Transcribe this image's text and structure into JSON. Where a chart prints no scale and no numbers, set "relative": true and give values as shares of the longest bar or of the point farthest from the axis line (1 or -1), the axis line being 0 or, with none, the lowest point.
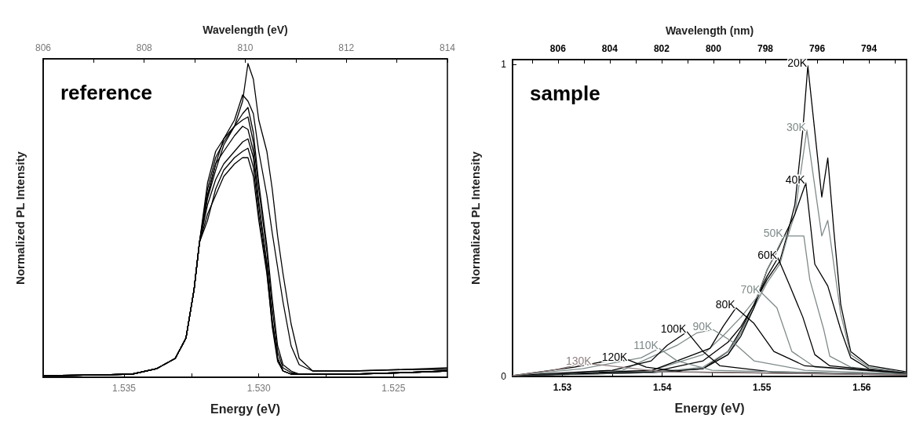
{
  "chart_data": [
    {
      "type": "line",
      "xlabel": "Energy (eV)",
      "x2label": "Wavelength (eV)",
      "ylabel": "Normalized PL Intensity",
      "annotations": [
        "reference"
      ],
      "relative": true,
      "tick_labels": "x",
      "marker": "none",
      "xlim": [
        1.538,
        1.523
      ],
      "xticks": [
        1.535,
        {
          "value": 1.5325,
          "label": null
        },
        {
          "value": 1.53,
          "label": "1.530"
        },
        {
          "value": 1.5275,
          "label": null
        },
        1.525
      ],
      "x2lim": [
        806,
        814
      ],
      "x2ticks": [
        806,
        {
          "value": 807,
          "label": null
        },
        808,
        {
          "value": 809,
          "label": null
        },
        810,
        {
          "value": 811,
          "label": null
        },
        812,
        {
          "value": 813,
          "label": null
        },
        814
      ],
      "x": [
        1.538,
        1.536,
        1.5347,
        1.5338,
        1.5331,
        1.5327,
        1.5324,
        1.5322,
        1.5319,
        1.5316,
        1.5313,
        1.5309,
        1.5306,
        1.5304,
        1.5302,
        1.53,
        1.5297,
        1.5295,
        1.5293,
        1.5291,
        1.5288,
        1.5285,
        1.528,
        1.5265,
        1.5245,
        1.523
      ],
      "series": [
        {
          "color": "#000000",
          "values": [
            0.005,
            0.007,
            0.01,
            0.027,
            0.06,
            0.125,
            0.28,
            0.43,
            0.57,
            0.66,
            0.74,
            0.8,
            0.88,
            1.0,
            0.95,
            0.82,
            0.72,
            0.6,
            0.45,
            0.33,
            0.17,
            0.06,
            0.02,
            0.02,
            0.025,
            0.03
          ]
        },
        {
          "color": "#000000",
          "values": [
            0.005,
            0.007,
            0.01,
            0.027,
            0.06,
            0.125,
            0.28,
            0.43,
            0.58,
            0.68,
            0.76,
            0.82,
            0.9,
            0.88,
            0.84,
            0.72,
            0.58,
            0.46,
            0.35,
            0.24,
            0.1,
            0.04,
            0.02,
            0.02,
            0.025,
            0.025
          ]
        },
        {
          "color": "#000000",
          "values": [
            0.005,
            0.007,
            0.01,
            0.027,
            0.06,
            0.125,
            0.28,
            0.43,
            0.6,
            0.7,
            0.75,
            0.8,
            0.84,
            0.86,
            0.78,
            0.62,
            0.42,
            0.25,
            0.1,
            0.04,
            0.02,
            0.01,
            0.01,
            0.01,
            0.015,
            0.02
          ]
        },
        {
          "color": "#000000",
          "values": [
            0.005,
            0.007,
            0.01,
            0.027,
            0.06,
            0.125,
            0.28,
            0.43,
            0.62,
            0.72,
            0.76,
            0.8,
            0.82,
            0.83,
            0.75,
            0.6,
            0.4,
            0.22,
            0.08,
            0.03,
            0.015,
            0.01,
            0.01,
            0.01,
            0.015,
            0.02
          ]
        },
        {
          "color": "#000000",
          "values": [
            0.005,
            0.007,
            0.01,
            0.027,
            0.06,
            0.125,
            0.28,
            0.43,
            0.58,
            0.68,
            0.72,
            0.77,
            0.8,
            0.79,
            0.72,
            0.56,
            0.36,
            0.18,
            0.06,
            0.02,
            0.01,
            0.01,
            0.01,
            0.01,
            0.015,
            0.02
          ]
        },
        {
          "color": "#000000",
          "values": [
            0.005,
            0.007,
            0.01,
            0.027,
            0.06,
            0.125,
            0.28,
            0.43,
            0.55,
            0.63,
            0.68,
            0.72,
            0.75,
            0.76,
            0.7,
            0.55,
            0.36,
            0.18,
            0.06,
            0.02,
            0.01,
            0.01,
            0.01,
            0.01,
            0.015,
            0.02
          ]
        },
        {
          "color": "#000000",
          "values": [
            0.005,
            0.007,
            0.01,
            0.027,
            0.06,
            0.125,
            0.28,
            0.43,
            0.5,
            0.6,
            0.66,
            0.7,
            0.72,
            0.73,
            0.67,
            0.52,
            0.34,
            0.16,
            0.05,
            0.02,
            0.01,
            0.01,
            0.01,
            0.01,
            0.015,
            0.02
          ]
        },
        {
          "color": "#000000",
          "values": [
            0.005,
            0.007,
            0.01,
            0.027,
            0.06,
            0.125,
            0.28,
            0.43,
            0.52,
            0.58,
            0.64,
            0.68,
            0.7,
            0.7,
            0.64,
            0.5,
            0.33,
            0.17,
            0.06,
            0.02,
            0.01,
            0.01,
            0.01,
            0.01,
            0.015,
            0.02
          ]
        }
      ]
    },
    {
      "type": "line",
      "xlabel": "Energy (eV)",
      "x2label": "Wavelength (nm)",
      "ylabel": "Normalized PL Intensity",
      "annotations": [
        "sample"
      ],
      "marker": "none",
      "xlim": [
        1.525,
        1.5645
      ],
      "xticks": [
        1.53,
        {
          "value": 1.535,
          "label": null
        },
        1.54,
        {
          "value": 1.545,
          "label": null
        },
        1.55,
        {
          "value": 1.555,
          "label": null
        },
        1.56
      ],
      "x2lim": [
        807.75,
        792.55
      ],
      "x2ticks": [
        {
          "value": 807,
          "label": null
        },
        806,
        {
          "value": 805,
          "label": null
        },
        804,
        {
          "value": 803,
          "label": null
        },
        802,
        {
          "value": 801,
          "label": null
        },
        800,
        {
          "value": 799,
          "label": null
        },
        798,
        {
          "value": 797,
          "label": null
        },
        796,
        {
          "value": 795,
          "label": null
        },
        794,
        {
          "value": 793,
          "label": null
        }
      ],
      "ylim": [
        0,
        1.015
      ],
      "yticks": [
        0,
        1
      ],
      "series": [
        {
          "name": "20K",
          "color": "#000000",
          "x": [
            1.525,
            1.539,
            1.5441,
            1.5466,
            1.5479,
            1.5492,
            1.5505,
            1.5518,
            1.5525,
            1.5533,
            1.5541,
            1.5546,
            1.556,
            1.5566,
            1.5572,
            1.5579,
            1.5589,
            1.5607,
            1.5645
          ],
          "values": [
            0.003,
            0.015,
            0.025,
            0.08,
            0.15,
            0.23,
            0.31,
            0.37,
            0.45,
            0.55,
            0.79,
            0.995,
            0.575,
            0.7,
            0.47,
            0.23,
            0.08,
            0.035,
            0.015
          ]
        },
        {
          "name": "30K",
          "color": "#7f8a8a",
          "x": [
            1.525,
            1.539,
            1.5441,
            1.5466,
            1.5479,
            1.5492,
            1.5505,
            1.5518,
            1.5525,
            1.5533,
            1.5545,
            1.556,
            1.5566,
            1.5572,
            1.5579,
            1.5589,
            1.5607,
            1.5645
          ],
          "values": [
            0.003,
            0.015,
            0.025,
            0.07,
            0.14,
            0.22,
            0.3,
            0.36,
            0.44,
            0.52,
            0.79,
            0.45,
            0.5,
            0.36,
            0.2,
            0.07,
            0.03,
            0.012
          ]
        },
        {
          "name": "40K",
          "color": "#000000",
          "x": [
            1.525,
            1.539,
            1.5441,
            1.5466,
            1.5479,
            1.5492,
            1.5505,
            1.5518,
            1.5533,
            1.5544,
            1.5553,
            1.5566,
            1.5579,
            1.5589,
            1.5607,
            1.5645
          ],
          "values": [
            0.003,
            0.012,
            0.025,
            0.07,
            0.13,
            0.22,
            0.34,
            0.42,
            0.52,
            0.62,
            0.36,
            0.29,
            0.15,
            0.06,
            0.025,
            0.01
          ]
        },
        {
          "name": "50K",
          "color": "#7f8a8a",
          "x": [
            1.525,
            1.539,
            1.5441,
            1.5466,
            1.5479,
            1.5492,
            1.5505,
            1.5522,
            1.5542,
            1.5548,
            1.5562,
            1.5568,
            1.5589,
            1.5645
          ],
          "values": [
            0.003,
            0.012,
            0.03,
            0.08,
            0.14,
            0.23,
            0.34,
            0.45,
            0.45,
            0.31,
            0.15,
            0.065,
            0.03,
            0.01
          ]
        },
        {
          "name": "60K",
          "color": "#000000",
          "x": [
            1.525,
            1.539,
            1.5441,
            1.5466,
            1.5479,
            1.5492,
            1.5505,
            1.5516,
            1.5528,
            1.5541,
            1.5553,
            1.5568,
            1.5645
          ],
          "values": [
            0.003,
            0.015,
            0.05,
            0.11,
            0.16,
            0.23,
            0.32,
            0.38,
            0.29,
            0.19,
            0.07,
            0.034,
            0.01
          ]
        },
        {
          "name": "70K",
          "color": "#7f8a8a",
          "x": [
            1.525,
            1.539,
            1.5441,
            1.5461,
            1.5479,
            1.5499,
            1.5515,
            1.553,
            1.5553,
            1.5645
          ],
          "values": [
            0.003,
            0.02,
            0.07,
            0.13,
            0.19,
            0.27,
            0.22,
            0.08,
            0.03,
            0.01
          ]
        },
        {
          "name": "80K",
          "color": "#000000",
          "x": [
            1.525,
            1.539,
            1.5448,
            1.5461,
            1.5474,
            1.5492,
            1.5512,
            1.5543,
            1.5645
          ],
          "values": [
            0.003,
            0.02,
            0.09,
            0.16,
            0.22,
            0.17,
            0.08,
            0.034,
            0.01
          ]
        },
        {
          "name": "90K",
          "color": "#7f8a8a",
          "x": [
            1.525,
            1.536,
            1.5415,
            1.5435,
            1.5451,
            1.5471,
            1.5492,
            1.5543,
            1.5645
          ],
          "values": [
            0.003,
            0.02,
            0.1,
            0.14,
            0.15,
            0.11,
            0.05,
            0.02,
            0.008
          ]
        },
        {
          "name": "100K",
          "color": "#000000",
          "x": [
            1.525,
            1.535,
            1.5389,
            1.5405,
            1.5425,
            1.5441,
            1.5458,
            1.551,
            1.5645
          ],
          "values": [
            0.003,
            0.02,
            0.05,
            0.1,
            0.143,
            0.08,
            0.034,
            0.015,
            0.006
          ]
        },
        {
          "name": "110K",
          "color": "#7f8a8a",
          "x": [
            1.525,
            1.532,
            1.5379,
            1.5397,
            1.5415,
            1.545,
            1.5645
          ],
          "values": [
            0.003,
            0.025,
            0.06,
            0.09,
            0.05,
            0.02,
            0.006
          ]
        },
        {
          "name": "120K",
          "color": "#000000",
          "x": [
            1.525,
            1.5312,
            1.5343,
            1.5366,
            1.5384,
            1.542,
            1.5645
          ],
          "values": [
            0.003,
            0.03,
            0.049,
            0.053,
            0.03,
            0.015,
            0.005
          ]
        },
        {
          "name": "130K",
          "color": "#8f7f7f",
          "x": [
            1.525,
            1.529,
            1.5312,
            1.533,
            1.536,
            1.54,
            1.5645
          ],
          "values": [
            0.003,
            0.02,
            0.035,
            0.04,
            0.03,
            0.015,
            0.005
          ]
        }
      ]
    }
  ]
}
